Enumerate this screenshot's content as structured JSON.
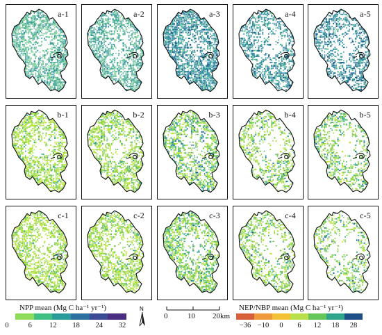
{
  "panels": [
    {
      "label": "a-1",
      "palette": "npp",
      "density": 0.8,
      "levels": [
        0.45,
        0.4,
        0.15,
        0.0
      ]
    },
    {
      "label": "a-2",
      "palette": "npp",
      "density": 0.75,
      "levels": [
        0.3,
        0.5,
        0.2,
        0.0
      ]
    },
    {
      "label": "a-3",
      "palette": "npp",
      "density": 0.85,
      "levels": [
        0.05,
        0.25,
        0.5,
        0.2
      ]
    },
    {
      "label": "a-4",
      "palette": "npp",
      "density": 0.62,
      "levels": [
        0.1,
        0.25,
        0.45,
        0.2
      ]
    },
    {
      "label": "a-5",
      "palette": "npp",
      "density": 0.62,
      "levels": [
        0.05,
        0.2,
        0.45,
        0.3
      ]
    },
    {
      "label": "b-1",
      "palette": "nep",
      "density": 0.7,
      "levels": [
        0.55,
        0.35,
        0.1,
        0.0
      ]
    },
    {
      "label": "b-2",
      "palette": "nep",
      "density": 0.65,
      "levels": [
        0.45,
        0.4,
        0.15,
        0.0
      ]
    },
    {
      "label": "b-3",
      "palette": "nep",
      "density": 0.68,
      "levels": [
        0.25,
        0.4,
        0.25,
        0.1
      ]
    },
    {
      "label": "b-4",
      "palette": "nep",
      "density": 0.5,
      "levels": [
        0.35,
        0.4,
        0.2,
        0.05
      ]
    },
    {
      "label": "b-5",
      "palette": "nep",
      "density": 0.5,
      "levels": [
        0.3,
        0.4,
        0.25,
        0.05
      ]
    },
    {
      "label": "c-1",
      "palette": "nep",
      "density": 0.72,
      "levels": [
        0.6,
        0.35,
        0.05,
        0.0
      ]
    },
    {
      "label": "c-2",
      "palette": "nep",
      "density": 0.66,
      "levels": [
        0.5,
        0.4,
        0.1,
        0.0
      ]
    },
    {
      "label": "c-3",
      "palette": "nep",
      "density": 0.68,
      "levels": [
        0.25,
        0.45,
        0.25,
        0.05
      ]
    },
    {
      "label": "c-4",
      "palette": "nep",
      "density": 0.5,
      "levels": [
        0.35,
        0.45,
        0.15,
        0.05
      ]
    },
    {
      "label": "c-5",
      "palette": "nep",
      "density": 0.45,
      "levels": [
        0.3,
        0.45,
        0.2,
        0.05
      ]
    }
  ],
  "palettes": {
    "npp": [
      "#7fcf9a",
      "#4fae9a",
      "#2e8ea0",
      "#1f5f8e"
    ],
    "nep": [
      "#b7e43a",
      "#7fcf4a",
      "#3fae8a",
      "#1e6f9a"
    ]
  },
  "legend_npp": {
    "title": "NPP mean (Mg C ha⁻¹ yr⁻¹)",
    "colors": [
      "#8fdc5a",
      "#3fbf84",
      "#2a9a9a",
      "#2d6f9d",
      "#3b4a94",
      "#4b2d7f"
    ],
    "ticks": [
      "0",
      "6",
      "12",
      "18",
      "24",
      "32"
    ]
  },
  "legend_nep": {
    "title": "NEP/NBP mean (Mg C ha⁻¹ yr⁻¹)",
    "colors": [
      "#d65f3c",
      "#ee9a3a",
      "#f3c234",
      "#b9e04a",
      "#66c65c",
      "#2fa68c",
      "#1d4f86"
    ],
    "ticks": [
      "−36",
      "−10",
      "0",
      "6",
      "12",
      "18",
      "28"
    ]
  },
  "north_arrow": {
    "letter": "N"
  },
  "scale_bar": {
    "ticks": [
      "0",
      "10",
      "20km"
    ]
  }
}
